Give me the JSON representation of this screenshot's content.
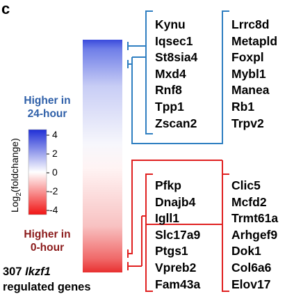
{
  "panel_label": "c",
  "gene_groups": {
    "up_24h_col1": [
      "Kynu",
      "Iqsec1",
      "St8sia4",
      "Mxd4",
      "Rnf8",
      "Tpp1",
      "Zscan2"
    ],
    "up_24h_col2": [
      "Lrrc8d",
      "Metapld",
      "Foxpl",
      "Mybl1",
      "Manea",
      "Rb1",
      "Trpv2"
    ],
    "up_0h_col1": [
      "Pfkp",
      "Dnajb4",
      "Igll1",
      "Slc17a9",
      "Ptgs1",
      "Vpreb2",
      "Fam43a"
    ],
    "up_0h_col2": [
      "Clic5",
      "Mcfd2",
      "Trmt61a",
      "Arhgef9",
      "Dok1",
      "Col6a6",
      "Elov17"
    ]
  },
  "legend": {
    "higher_24h_line1": "Higher in",
    "higher_24h_line2": "24-hour",
    "higher_0h_line1": "Higher in",
    "higher_0h_line2": "0-hour",
    "axis_label_main": "Log",
    "axis_label_sub": "2",
    "axis_label_rest": "(foldchange)",
    "ticks": [
      {
        "label": "4",
        "value": 4
      },
      {
        "label": "2",
        "value": 2
      },
      {
        "label": "0",
        "value": 0
      },
      {
        "label": "-2",
        "value": -2
      },
      {
        "label": "-4",
        "value": -4
      }
    ]
  },
  "gene_count": {
    "number_prefix": "307",
    "gene_name": "Ikzf1",
    "line2": "regulated genes"
  },
  "colors": {
    "high_blue": "#1f2fd6",
    "high_red": "#f01414",
    "mid": "#ffffff",
    "blue_bracket": "#2f7fc1",
    "red_bracket": "#e02020",
    "label_blue": "#2e5fa8",
    "label_red": "#8b1a1a"
  }
}
